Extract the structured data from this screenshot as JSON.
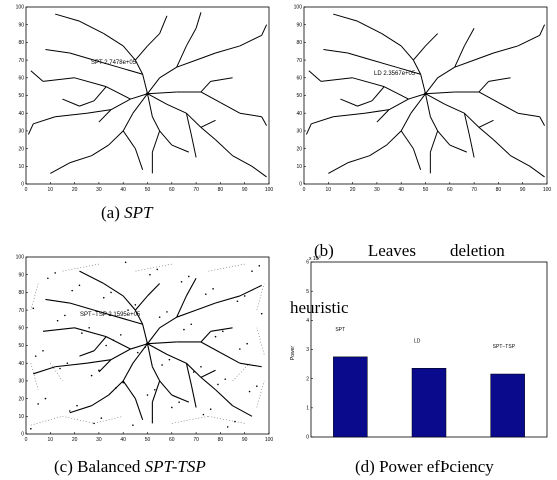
{
  "chart_data": [
    {
      "type": "network",
      "panel": "a",
      "annotation": "SPT 2.7478e+05",
      "xlim": [
        0,
        100
      ],
      "ylim": [
        0,
        100
      ],
      "xticks": [
        0,
        10,
        20,
        30,
        40,
        50,
        60,
        70,
        80,
        90,
        100
      ],
      "yticks": [
        0,
        10,
        20,
        30,
        40,
        50,
        60,
        70,
        80,
        90,
        100
      ],
      "caption_prefix": "(a) ",
      "caption_em": "SPT",
      "caption_suffix": ""
    },
    {
      "type": "network",
      "panel": "b",
      "annotation": "LD  2.3567e+05",
      "xlim": [
        0,
        100
      ],
      "ylim": [
        0,
        100
      ],
      "xticks": [
        0,
        10,
        20,
        30,
        40,
        50,
        60,
        70,
        80,
        90,
        100
      ],
      "yticks": [
        0,
        10,
        20,
        30,
        40,
        50,
        60,
        70,
        80,
        90,
        100
      ],
      "caption_line1": "(b)        Leaves        deletion",
      "caption_line2": "heuristic"
    },
    {
      "type": "network",
      "panel": "c",
      "annotation": "SPT−TSP  2.1595e+05",
      "xlim": [
        0,
        100
      ],
      "ylim": [
        0,
        100
      ],
      "xticks": [
        0,
        10,
        20,
        30,
        40,
        50,
        60,
        70,
        80,
        90,
        100
      ],
      "yticks": [
        0,
        10,
        20,
        30,
        40,
        50,
        60,
        70,
        80,
        90,
        100
      ],
      "caption_prefix": "(c) Balanced ",
      "caption_em": "SPT-TSP",
      "caption_suffix": ""
    },
    {
      "type": "bar",
      "panel": "d",
      "categories": [
        "SPT",
        "LD",
        "SPT−TSP"
      ],
      "values": [
        2.7478,
        2.3567,
        2.1595
      ],
      "ylabel": "Power",
      "scale_label": "x 10",
      "scale_exp": "5",
      "ylim": [
        0,
        6
      ],
      "yticks": [
        0,
        1,
        2,
        3,
        4,
        5,
        6
      ],
      "bar_color": "#0a0a8c",
      "caption": "(d) Power efÞciency"
    }
  ]
}
